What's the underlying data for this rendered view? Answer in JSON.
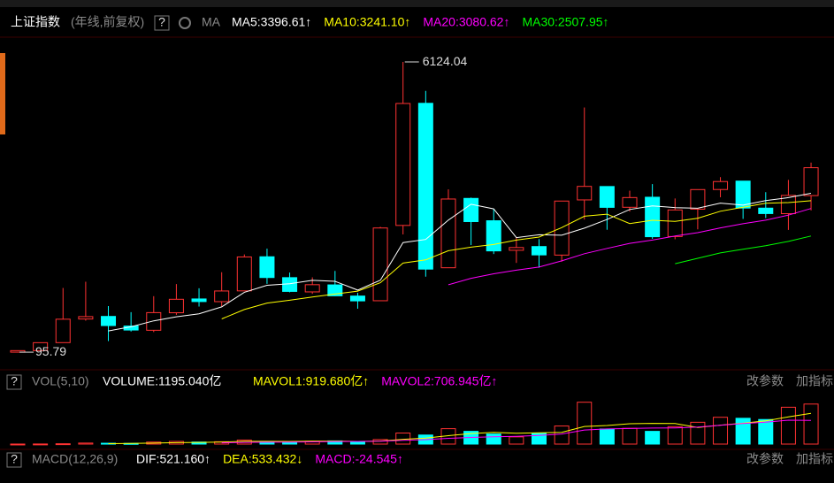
{
  "toolbar": {
    "symbol": "上证指数",
    "period": "(年线,前复权)",
    "help": "?",
    "indicator": "MA"
  },
  "chart_data": [
    {
      "type": "candlestick",
      "open": [
        96.05,
        127.61,
        293.74,
        784.13,
        837.7,
        637.72,
        550.26,
        914.06,
        1200.95,
        1144.89,
        1368.69,
        2077.08,
        1643.48,
        1347.43,
        1492.72,
        1260.78,
        1163.88,
        2728.19,
        5265,
        1849.02,
        3289.75,
        2825.33,
        2212,
        2289.51,
        2112.13,
        3258.63,
        3536.59,
        3105.31,
        3314.03,
        2497.88,
        3066.34,
        3474.68,
        3649.15,
        3087.51,
        2972.53,
        3347.94
      ],
      "high": [
        127.61,
        292.75,
        1429.01,
        1558.95,
        1052.94,
        926.41,
        1258.69,
        1510.18,
        1422.98,
        1756.18,
        2125.72,
        2245.43,
        1748.89,
        1649.6,
        1783.01,
        1328.53,
        2698.9,
        6124.04,
        5522.78,
        3478.01,
        3306.75,
        3067.46,
        2478.38,
        2444.8,
        3239.36,
        5178.19,
        3538.69,
        3450.49,
        3587.03,
        3288.45,
        3474.92,
        3731.69,
        3651.89,
        3418.95,
        3674.4,
        4034.08
      ],
      "low": [
        95.79,
        104.96,
        292.76,
        750.46,
        325.89,
        524.43,
        512.83,
        870.18,
        1043.02,
        1047.83,
        1361.21,
        1514.86,
        1339.2,
        1307.4,
        1259.43,
        998.23,
        1161.91,
        2541.52,
        1664.93,
        1844.09,
        2319.74,
        2134.02,
        1949.46,
        1849.65,
        1974.38,
        2850.71,
        2638.3,
        3016.53,
        2449.2,
        2440.91,
        2646.8,
        3312.72,
        2863.65,
        2882.02,
        2635.09,
        3040.69
      ],
      "close": [
        127.61,
        292.75,
        780.39,
        833.8,
        647.87,
        555.29,
        917.02,
        1194.1,
        1146.7,
        1366.58,
        2073.48,
        1645.97,
        1357.65,
        1497.04,
        1266.5,
        1161.06,
        2675.47,
        5261.56,
        1820.81,
        3277.14,
        2808.08,
        2199.42,
        2269.13,
        2115.98,
        3234.68,
        3539.18,
        3103.64,
        3307.17,
        2493.9,
        3050.12,
        3473.07,
        3639.78,
        3089.26,
        2974.93,
        3351.76,
        3927.32
      ],
      "up_color": "#ff3232",
      "down_color": "#00ffff",
      "ylim": [
        -160,
        6860
      ],
      "series": [
        {
          "name": "MA5:3396.61↑",
          "color": "#ffffff",
          "values": [
            null,
            null,
            null,
            null,
            536.5,
            622,
            746.9,
            829.6,
            892.2,
            1035.9,
            1339.6,
            1485.4,
            1518.1,
            1588.1,
            1568.1,
            1385.6,
            1591.5,
            2372.3,
            2437.1,
            2839.2,
            3168.6,
            3073.4,
            2474.9,
            2534,
            2525.5,
            2671.7,
            2852.5,
            3060.1,
            3135.7,
            3098.8,
            3085.6,
            3192.8,
            3149.2,
            3245.4,
            3305.8,
            3396.61
          ]
        },
        {
          "name": "MA10:3241.10↑",
          "color": "#ffff00",
          "values": [
            null,
            null,
            null,
            null,
            null,
            null,
            null,
            null,
            null,
            786.2,
            980.8,
            1116.1,
            1173.8,
            1240.2,
            1302,
            1362.6,
            1538.5,
            1945.2,
            2012.6,
            2203.7,
            2277.1,
            2332.5,
            2423.6,
            2485.5,
            2682.3,
            2920.1,
            2963,
            2767.5,
            2834.8,
            2812.1,
            2878.6,
            3022.7,
            3104.7,
            3190.6,
            3202.3,
            3241.1
          ]
        },
        {
          "name": "MA20:3080.62↑",
          "color": "#ff00ff",
          "values": [
            null,
            null,
            null,
            null,
            null,
            null,
            null,
            null,
            null,
            null,
            null,
            null,
            null,
            null,
            null,
            null,
            null,
            null,
            null,
            1494.9,
            1629,
            1724.3,
            1798.7,
            1862.8,
            1992.2,
            2141.4,
            2250.7,
            2356.4,
            2423.7,
            2507.9,
            2577.9,
            2677.6,
            2764.1,
            2838,
            2942.3,
            3080.62
          ]
        },
        {
          "name": "MA30:2507.95↑",
          "color": "#00ff00",
          "values": [
            null,
            null,
            null,
            null,
            null,
            null,
            null,
            null,
            null,
            null,
            null,
            null,
            null,
            null,
            null,
            null,
            null,
            null,
            null,
            null,
            null,
            null,
            null,
            null,
            null,
            null,
            null,
            null,
            null,
            1934,
            2045.5,
            2157.1,
            2234,
            2305.4,
            2395.5,
            2507.95
          ]
        }
      ]
    },
    {
      "type": "bar",
      "title": "VOL(5,10)",
      "value_label": "VOLUME:1195.040亿",
      "values": [
        1,
        3,
        10,
        30,
        25,
        20,
        60,
        80,
        60,
        70,
        120,
        80,
        70,
        85,
        95,
        65,
        135,
        330,
        270,
        460,
        380,
        300,
        215,
        325,
        540,
        1250,
        450,
        470,
        380,
        520,
        651.05,
        800,
        770,
        733.36,
        1100,
        1195.04
      ],
      "ylim": [
        0,
        1400
      ],
      "series": [
        {
          "name": "MAVOL1:919.680亿↑",
          "color": "#ffff00",
          "values": [
            null,
            null,
            null,
            null,
            13.8,
            17.6,
            29,
            43,
            49,
            62,
            82,
            82,
            80,
            85,
            90,
            79,
            90,
            142,
            179,
            252,
            315,
            348,
            325,
            336,
            352,
            526,
            556,
            607,
            618,
            614,
            494.2,
            564.2,
            624.2,
            694.9,
            810.9,
            919.68
          ]
        },
        {
          "name": "MAVOL2:706.945亿↑",
          "color": "#ff00ff",
          "values": [
            null,
            null,
            null,
            null,
            null,
            null,
            null,
            null,
            null,
            37.9,
            49.8,
            55.5,
            61.5,
            67,
            76,
            80.5,
            86,
            111,
            132,
            171,
            197,
            219,
            233.5,
            257.5,
            302,
            420.5,
            452,
            466,
            477,
            483,
            510.1,
            560.1,
            615.6,
            656.4,
            712.4,
            706.945
          ]
        }
      ]
    }
  ],
  "panels": {
    "volume": {
      "help": "?",
      "buttons": [
        "改参数",
        "加指标"
      ]
    },
    "macd": {
      "help": "?",
      "title": "MACD(12,26,9)",
      "items": [
        {
          "text": "DIF:521.160↑",
          "color": "#ffffff"
        },
        {
          "text": "DEA:533.432↓",
          "color": "#ffff00"
        },
        {
          "text": "MACD:-24.545↑",
          "color": "#ff00ff"
        }
      ],
      "buttons": [
        "改参数",
        "加指标"
      ]
    }
  }
}
